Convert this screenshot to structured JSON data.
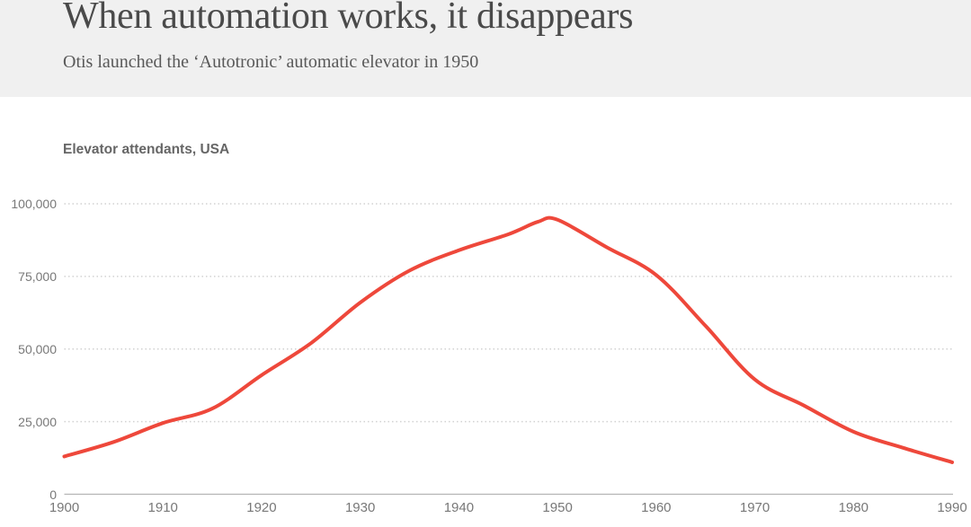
{
  "header": {
    "title": "When automation works, it disappears",
    "subtitle": "Otis launched the ‘Autotronic’ automatic elevator in 1950",
    "background_color": "#f0f0f0",
    "title_color": "#4a4a4a"
  },
  "chart_data": {
    "type": "line",
    "title": "Elevator attendants, USA",
    "xlabel": "",
    "ylabel": "",
    "xlim": [
      1900,
      1990
    ],
    "ylim": [
      0,
      100000
    ],
    "grid": "horizontal dotted",
    "legend": "none",
    "series": [
      {
        "name": "Elevator attendants, USA",
        "color": "#ee483b",
        "x": [
          1900,
          1905,
          1910,
          1915,
          1920,
          1925,
          1930,
          1935,
          1940,
          1945,
          1948,
          1950,
          1955,
          1960,
          1965,
          1970,
          1975,
          1980,
          1985,
          1990
        ],
        "values": [
          13000,
          18000,
          24500,
          29500,
          41000,
          52000,
          66000,
          77000,
          84000,
          89500,
          93800,
          94500,
          85000,
          75500,
          58000,
          39500,
          30500,
          21500,
          16000,
          11000
        ]
      }
    ],
    "peak": {
      "year": 1950,
      "value": 94500
    },
    "x_ticks": [
      1900,
      1910,
      1920,
      1930,
      1940,
      1950,
      1960,
      1970,
      1980,
      1990
    ],
    "y_ticks": [
      {
        "value": 0,
        "label": "0"
      },
      {
        "value": 25000,
        "label": "25,000"
      },
      {
        "value": 50000,
        "label": "50,000"
      },
      {
        "value": 75000,
        "label": "75,000"
      },
      {
        "value": 100000,
        "label": "100,000"
      }
    ],
    "axis_color": "#b5b5b5",
    "grid_color": "#d2d2d2",
    "tick_label_color": "#787878"
  }
}
